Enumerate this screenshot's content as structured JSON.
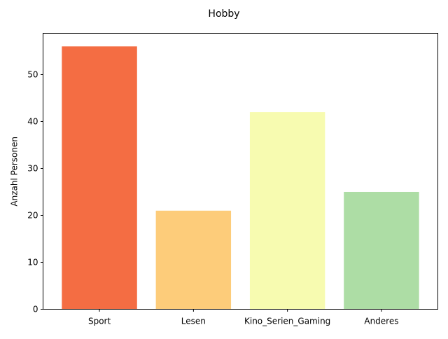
{
  "chart_data": {
    "type": "bar",
    "title": "Hobby",
    "xlabel": "",
    "ylabel": "Anzahl Personen",
    "categories": [
      "Sport",
      "Lesen",
      "Kino_Serien_Gaming",
      "Anderes"
    ],
    "values": [
      56,
      21,
      42,
      25
    ],
    "colors": [
      "#f46d43",
      "#fdcc7a",
      "#f7fbb0",
      "#addda5"
    ],
    "ylim": [
      0,
      58.8
    ],
    "yticks": [
      0,
      10,
      20,
      30,
      40,
      50
    ],
    "grid": false,
    "legend": "none"
  }
}
